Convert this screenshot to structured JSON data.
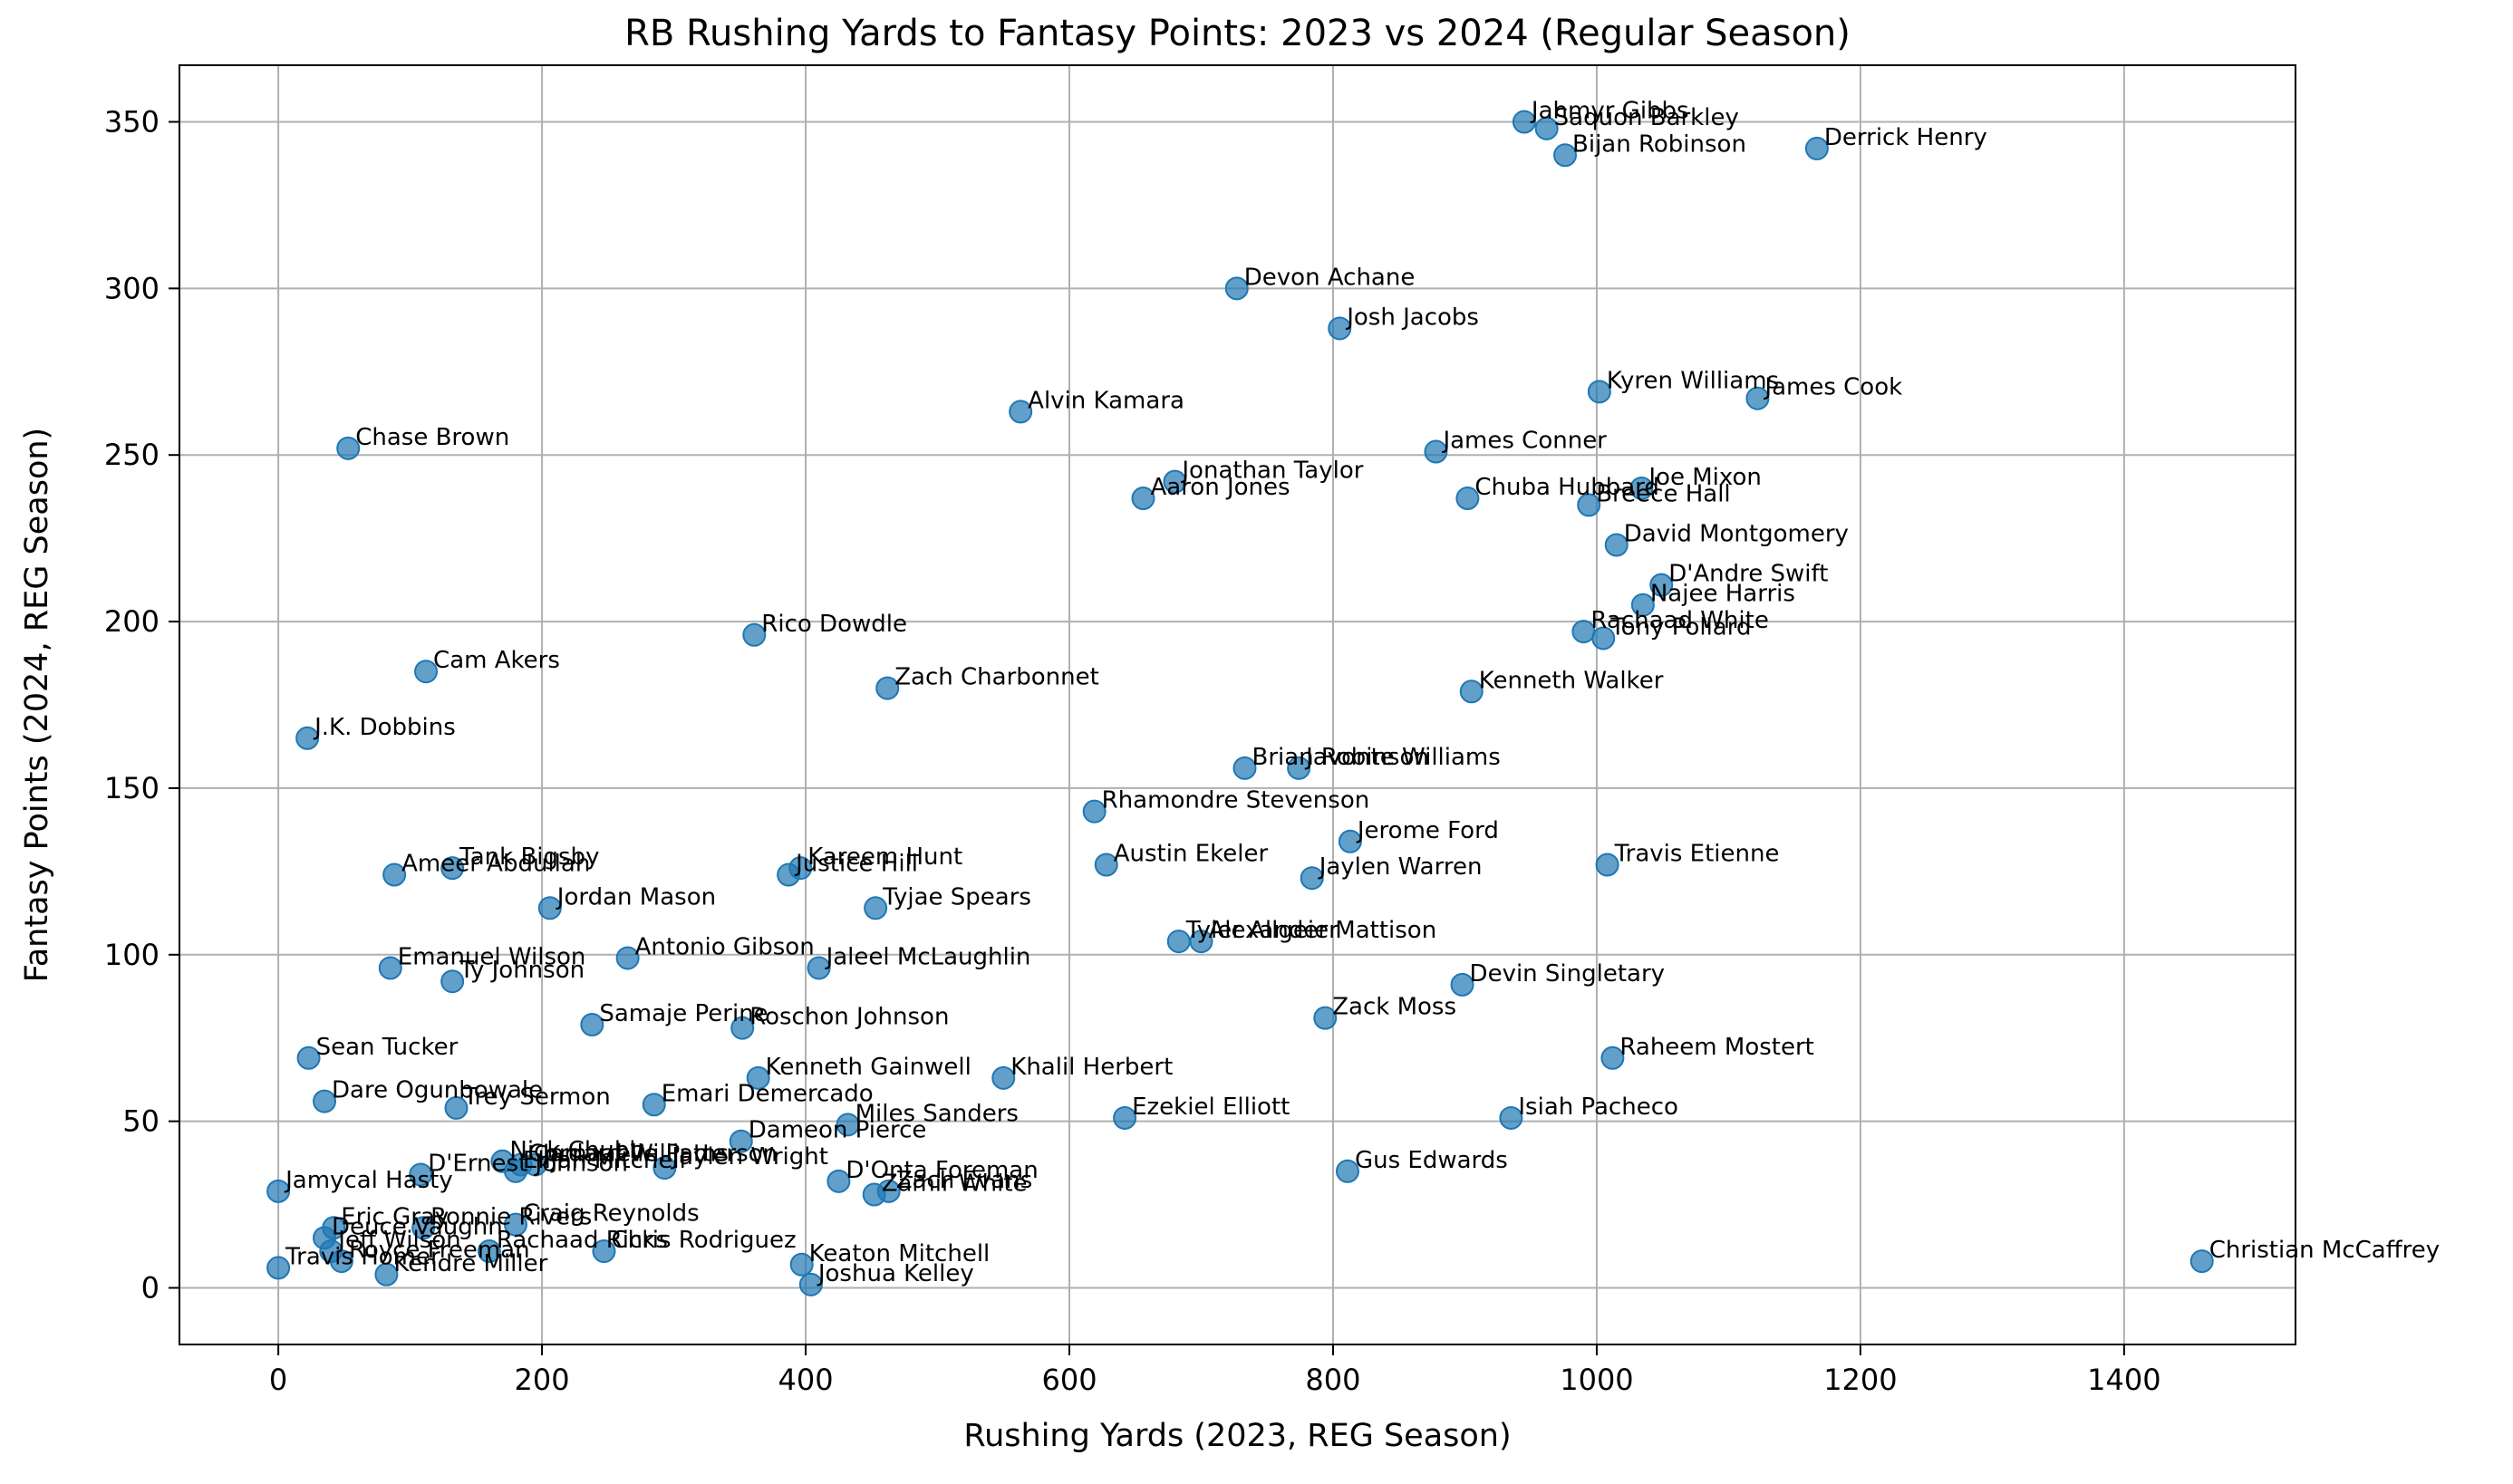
{
  "chart_data": {
    "type": "scatter",
    "title": "RB Rushing Yards to Fantasy Points: 2023 vs 2024 (Regular Season)",
    "xlabel": "Rushing Yards (2023, REG Season)",
    "ylabel": "Fantasy Points (2024, REG Season)",
    "xlim": [
      -75,
      1530
    ],
    "ylim": [
      -17,
      367
    ],
    "xticks": [
      0,
      200,
      400,
      600,
      800,
      1000,
      1200,
      1400
    ],
    "yticks": [
      0,
      50,
      100,
      150,
      200,
      250,
      300,
      350
    ],
    "grid": true,
    "point_color": "#1f77b4",
    "points": [
      {
        "name": "Jahmyr Gibbs",
        "x": 945,
        "y": 350
      },
      {
        "name": "Saquon Barkley",
        "x": 962,
        "y": 348
      },
      {
        "name": "Bijan Robinson",
        "x": 976,
        "y": 340
      },
      {
        "name": "Derrick Henry",
        "x": 1167,
        "y": 342
      },
      {
        "name": "Devon Achane",
        "x": 727,
        "y": 300
      },
      {
        "name": "Josh Jacobs",
        "x": 805,
        "y": 288
      },
      {
        "name": "Kyren Williams",
        "x": 1002,
        "y": 269
      },
      {
        "name": "James Cook",
        "x": 1122,
        "y": 267
      },
      {
        "name": "Alvin Kamara",
        "x": 563,
        "y": 263
      },
      {
        "name": "Chase Brown",
        "x": 53,
        "y": 252
      },
      {
        "name": "James Conner",
        "x": 878,
        "y": 251
      },
      {
        "name": "Jonathan Taylor",
        "x": 680,
        "y": 242
      },
      {
        "name": "Joe Mixon",
        "x": 1034,
        "y": 240
      },
      {
        "name": "Aaron Jones",
        "x": 656,
        "y": 237
      },
      {
        "name": "Chuba Hubbard",
        "x": 902,
        "y": 237
      },
      {
        "name": "Breece Hall",
        "x": 994,
        "y": 235
      },
      {
        "name": "David Montgomery",
        "x": 1015,
        "y": 223
      },
      {
        "name": "D'Andre Swift",
        "x": 1049,
        "y": 211
      },
      {
        "name": "Najee Harris",
        "x": 1035,
        "y": 205
      },
      {
        "name": "Rachaad White",
        "x": 990,
        "y": 197
      },
      {
        "name": "Tony Pollard",
        "x": 1005,
        "y": 195
      },
      {
        "name": "Rico Dowdle",
        "x": 361,
        "y": 196
      },
      {
        "name": "Cam Akers",
        "x": 112,
        "y": 185
      },
      {
        "name": "Zach Charbonnet",
        "x": 462,
        "y": 180
      },
      {
        "name": "Kenneth Walker",
        "x": 905,
        "y": 179
      },
      {
        "name": "J.K. Dobbins",
        "x": 22,
        "y": 165
      },
      {
        "name": "Brian Robinson",
        "x": 733,
        "y": 156
      },
      {
        "name": "Javonte Williams",
        "x": 774,
        "y": 156
      },
      {
        "name": "Rhamondre Stevenson",
        "x": 619,
        "y": 143
      },
      {
        "name": "Jerome Ford",
        "x": 813,
        "y": 134
      },
      {
        "name": "Travis Etienne",
        "x": 1008,
        "y": 127
      },
      {
        "name": "Austin Ekeler",
        "x": 628,
        "y": 127
      },
      {
        "name": "Tank Bigsby",
        "x": 132,
        "y": 126
      },
      {
        "name": "Kareem Hunt",
        "x": 396,
        "y": 126
      },
      {
        "name": "Ameer Abdullah",
        "x": 88,
        "y": 124
      },
      {
        "name": "Justice Hill",
        "x": 387,
        "y": 124
      },
      {
        "name": "Jaylen Warren",
        "x": 784,
        "y": 123
      },
      {
        "name": "Jordan Mason",
        "x": 206,
        "y": 114
      },
      {
        "name": "Tyjae Spears",
        "x": 453,
        "y": 114
      },
      {
        "name": "Tyler Allgeier",
        "x": 683,
        "y": 104
      },
      {
        "name": "Alexander Mattison",
        "x": 700,
        "y": 104
      },
      {
        "name": "Antonio Gibson",
        "x": 265,
        "y": 99
      },
      {
        "name": "Jaleel McLaughlin",
        "x": 410,
        "y": 96
      },
      {
        "name": "Emanuel Wilson",
        "x": 85,
        "y": 96
      },
      {
        "name": "Ty Johnson",
        "x": 132,
        "y": 92
      },
      {
        "name": "Devin Singletary",
        "x": 898,
        "y": 91
      },
      {
        "name": "Zack Moss",
        "x": 794,
        "y": 81
      },
      {
        "name": "Samaje Perine",
        "x": 238,
        "y": 79
      },
      {
        "name": "Roschon Johnson",
        "x": 352,
        "y": 78
      },
      {
        "name": "Sean Tucker",
        "x": 23,
        "y": 69
      },
      {
        "name": "Raheem Mostert",
        "x": 1012,
        "y": 69
      },
      {
        "name": "Kenneth Gainwell",
        "x": 364,
        "y": 63
      },
      {
        "name": "Khalil Herbert",
        "x": 550,
        "y": 63
      },
      {
        "name": "Dare Ogunbowale",
        "x": 35,
        "y": 56
      },
      {
        "name": "Trey Sermon",
        "x": 135,
        "y": 54
      },
      {
        "name": "Emari Demercado",
        "x": 285,
        "y": 55
      },
      {
        "name": "Ezekiel Elliott",
        "x": 642,
        "y": 51
      },
      {
        "name": "Isiah Pacheco",
        "x": 935,
        "y": 51
      },
      {
        "name": "Miles Sanders",
        "x": 432,
        "y": 49
      },
      {
        "name": "Dameon Pierce",
        "x": 351,
        "y": 44
      },
      {
        "name": "Nick Chubb",
        "x": 170,
        "y": 38
      },
      {
        "name": "Cordarrelle Patterson",
        "x": 184,
        "y": 37
      },
      {
        "name": "Jamaal Williams",
        "x": 195,
        "y": 37
      },
      {
        "name": "D'Ernest Johnson",
        "x": 108,
        "y": 34
      },
      {
        "name": "Elijah Mitchell",
        "x": 180,
        "y": 35
      },
      {
        "name": "Jaylen Wright",
        "x": 293,
        "y": 36
      },
      {
        "name": "Gus Edwards",
        "x": 811,
        "y": 35
      },
      {
        "name": "D'Onta Foreman",
        "x": 425,
        "y": 32
      },
      {
        "name": "Zamir White",
        "x": 452,
        "y": 28
      },
      {
        "name": "Zach Evans",
        "x": 463,
        "y": 29
      },
      {
        "name": "Jamycal Hasty",
        "x": 0,
        "y": 29
      },
      {
        "name": "Eric Gray",
        "x": 42,
        "y": 18
      },
      {
        "name": "Ronnie Rivers",
        "x": 110,
        "y": 18
      },
      {
        "name": "Craig Reynolds",
        "x": 180,
        "y": 19
      },
      {
        "name": "Deuce Vaughn",
        "x": 35,
        "y": 15
      },
      {
        "name": "Kendre Miller",
        "x": 82,
        "y": 4
      },
      {
        "name": "Chris Rodriguez",
        "x": 247,
        "y": 11
      },
      {
        "name": "Keaton Mitchell",
        "x": 397,
        "y": 7
      },
      {
        "name": "Joshua Kelley",
        "x": 404,
        "y": 1
      },
      {
        "name": "Travis Homer",
        "x": 0,
        "y": 6
      },
      {
        "name": "Christian McCaffrey",
        "x": 1459,
        "y": 8
      },
      {
        "name": "Jeff Wilson",
        "x": 40,
        "y": 11
      },
      {
        "name": "Royce Freeman",
        "x": 48,
        "y": 8
      },
      {
        "name": "Rachaad Ricks",
        "x": 160,
        "y": 11
      }
    ]
  }
}
